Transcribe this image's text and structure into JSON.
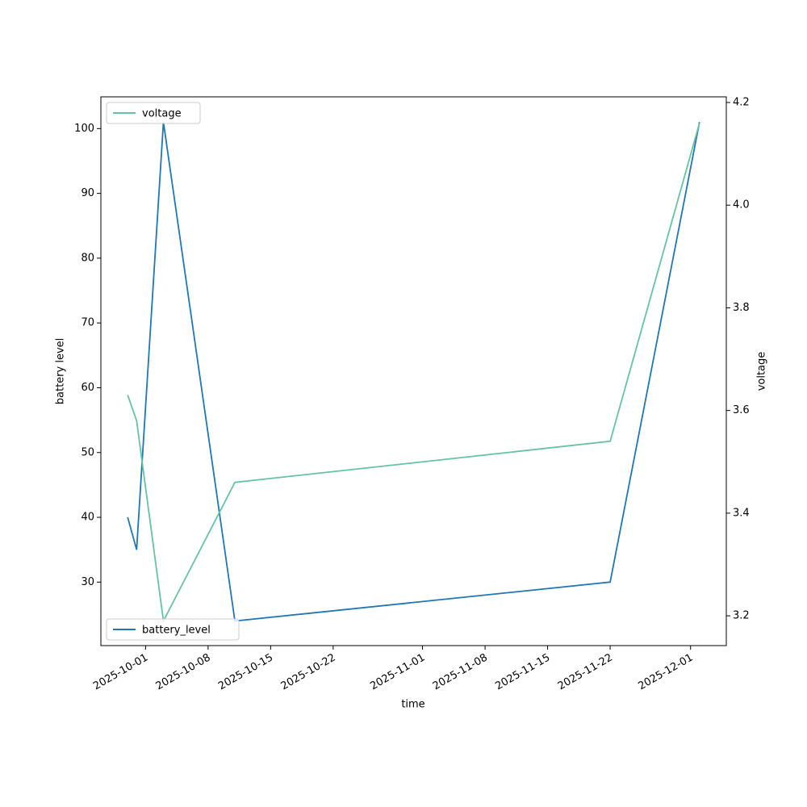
{
  "chart_data": {
    "type": "line",
    "x_label": "time",
    "y_label": "battery level",
    "y2_label": "voltage",
    "x": [
      "2025-09-29",
      "2025-09-30",
      "2025-10-03",
      "2025-10-11",
      "2025-11-22",
      "2025-12-02"
    ],
    "series": [
      {
        "name": "battery_level",
        "color": "#1f77b4",
        "values": [
          40,
          35,
          101,
          24,
          30,
          101
        ],
        "legend": "lower left"
      },
      {
        "name": "voltage",
        "color": "#66c2a5",
        "axis": "y2",
        "values": [
          3.63,
          3.58,
          3.19,
          3.46,
          3.54,
          4.16
        ],
        "legend": "upper left"
      }
    ],
    "xlim": [
      "2025-09-26",
      "2025-12-05"
    ],
    "xticks": [
      "2025-10-01",
      "2025-10-08",
      "2025-10-15",
      "2025-10-22",
      "2025-11-01",
      "2025-11-08",
      "2025-11-15",
      "2025-11-22",
      "2025-12-01"
    ],
    "ylim": [
      20.2,
      104.9
    ],
    "yticks": [
      30,
      40,
      50,
      60,
      70,
      80,
      90,
      100
    ],
    "y2lim": [
      3.142,
      4.211
    ],
    "y2ticks": [
      3.2,
      3.4,
      3.6,
      3.8,
      4.0,
      4.2
    ],
    "grid": false
  }
}
